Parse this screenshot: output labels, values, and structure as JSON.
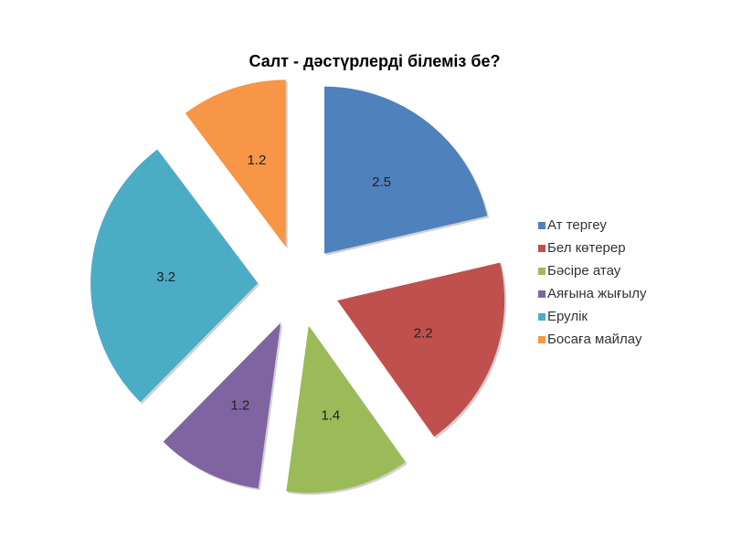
{
  "chart_data": {
    "type": "pie",
    "title": "Салт - дәстүрлерді білеміз бе?",
    "categories": [
      "Ат тергеу",
      "Бел көтерер",
      "Бәсіре атау",
      "Аяғына жығылу",
      "Ерулік",
      "Босаға майлау"
    ],
    "values": [
      2.5,
      2.2,
      1.4,
      1.2,
      3.2,
      1.2
    ],
    "colors": [
      "#4F81BD",
      "#C0504D",
      "#9BBB59",
      "#8064A2",
      "#4BACC6",
      "#F79646"
    ],
    "exploded": true,
    "data_labels": true,
    "legend_position": "right"
  }
}
